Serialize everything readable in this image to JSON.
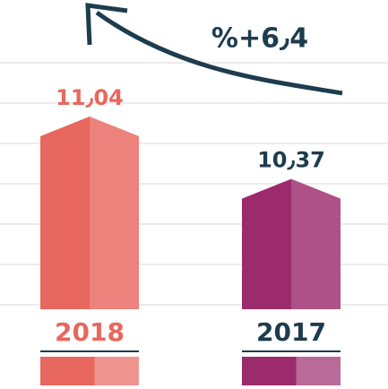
{
  "chart_data": {
    "type": "bar",
    "categories": [
      "2018",
      "2017"
    ],
    "values": [
      11.04,
      10.37
    ],
    "value_labels": [
      "11٫04",
      "10٫37"
    ],
    "colors": [
      "#e8675e",
      "#9c2b6d"
    ],
    "annotation": "%+6٫4"
  }
}
